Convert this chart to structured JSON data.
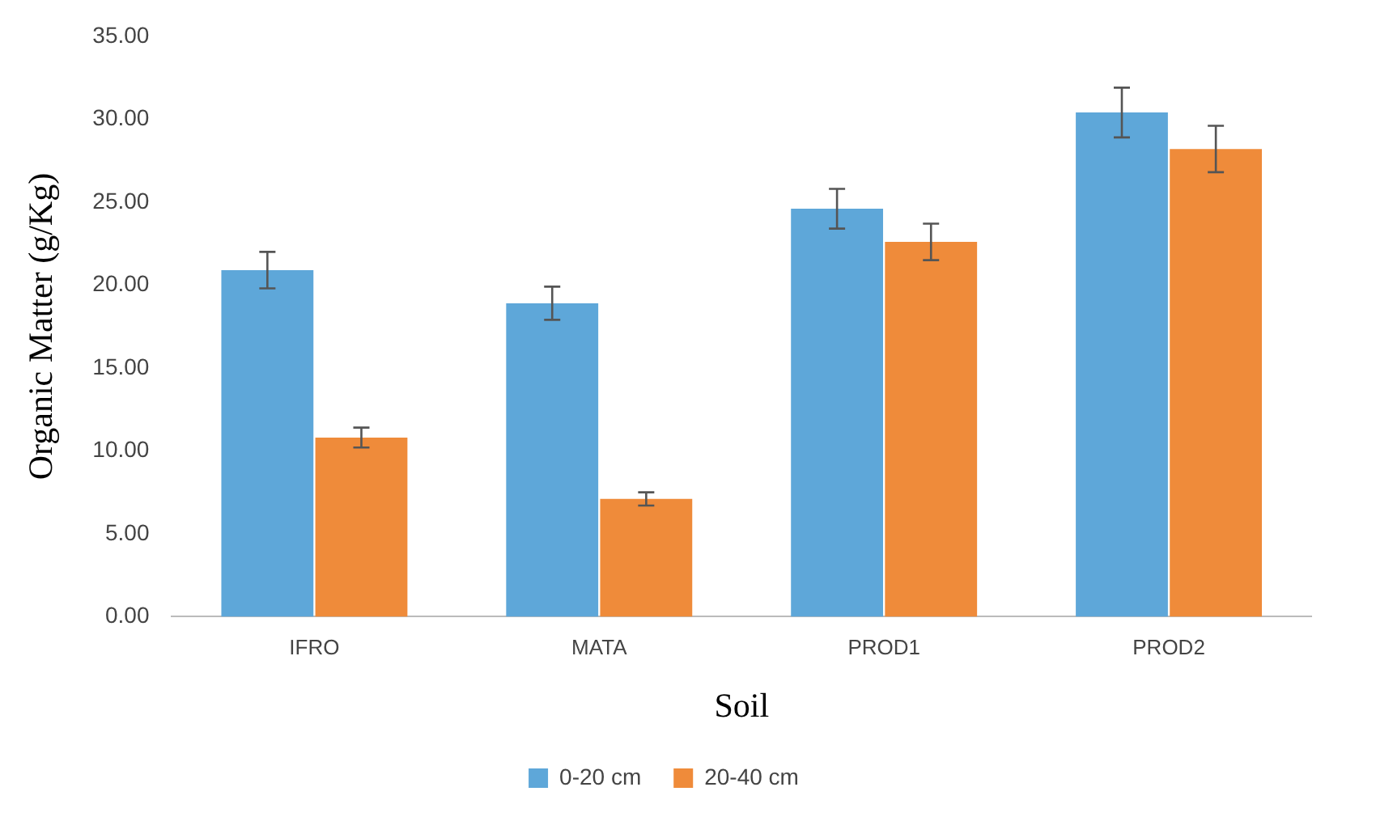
{
  "chart_data": {
    "type": "bar",
    "xlabel": "Soil",
    "ylabel": "Organic Matter (g/Kg)",
    "categories": [
      "IFRO",
      "MATA",
      "PROD1",
      "PROD2"
    ],
    "series": [
      {
        "name": "0-20 cm",
        "color": "#5ea7d9",
        "values": [
          20.9,
          18.9,
          24.6,
          30.4
        ],
        "errors": [
          1.1,
          1.0,
          1.2,
          1.5
        ]
      },
      {
        "name": "20-40 cm",
        "color": "#ef8b3a",
        "values": [
          10.8,
          7.1,
          22.6,
          28.2
        ],
        "errors": [
          0.6,
          0.4,
          1.1,
          1.4
        ]
      }
    ],
    "ylim": [
      0,
      35
    ],
    "yticks": [
      {
        "value": 0,
        "label": "0.00"
      },
      {
        "value": 5,
        "label": "5.00"
      },
      {
        "value": 10,
        "label": "10.00"
      },
      {
        "value": 15,
        "label": "15.00"
      },
      {
        "value": 20,
        "label": "20.00"
      },
      {
        "value": 25,
        "label": "25.00"
      },
      {
        "value": 30,
        "label": "30.00"
      },
      {
        "value": 35,
        "label": "35.00"
      }
    ],
    "grid": false,
    "legend": "bottom"
  }
}
